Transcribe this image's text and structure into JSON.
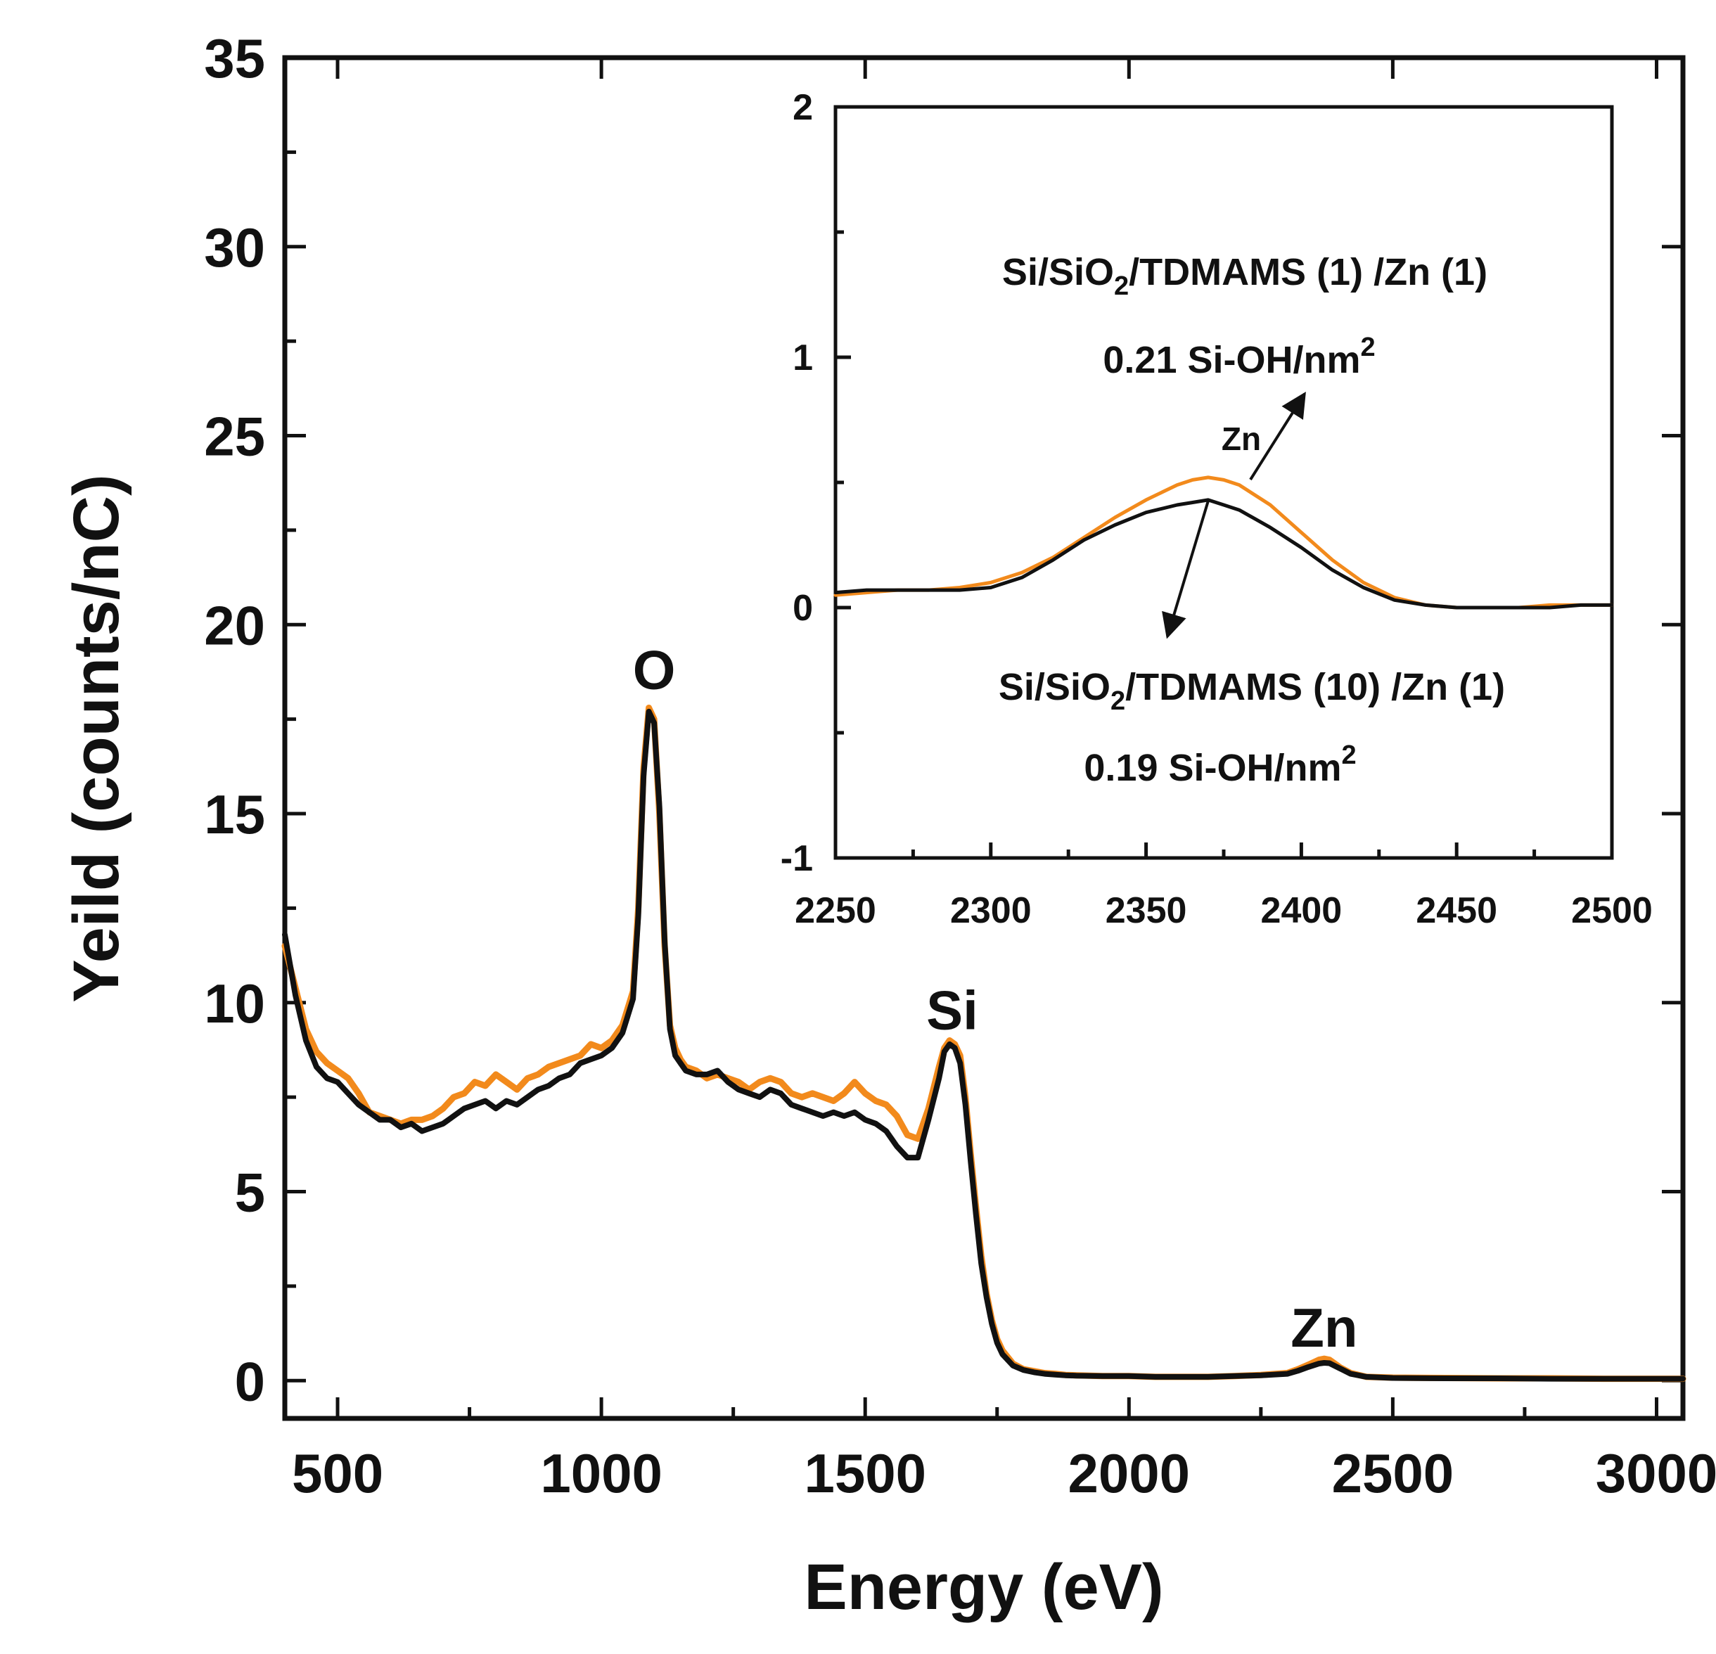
{
  "chart_data": [
    {
      "type": "line",
      "xlabel": "Energy (eV)",
      "ylabel": "Yeild (counts/nC)",
      "xlim": [
        400,
        3050
      ],
      "ylim": [
        -1,
        35
      ],
      "x_ticks": [
        500,
        1000,
        1500,
        2000,
        2500,
        3000
      ],
      "y_ticks": [
        0,
        5,
        10,
        15,
        20,
        25,
        30,
        35
      ],
      "grid": false,
      "peak_labels": [
        {
          "text": "O",
          "x": 1100,
          "y": 18.3
        },
        {
          "text": "Si",
          "x": 1665,
          "y": 9.3
        },
        {
          "text": "Zn",
          "x": 2370,
          "y": 0.9
        }
      ],
      "series": [
        {
          "color": "#F28A1C",
          "x": [
            400,
            420,
            440,
            460,
            480,
            500,
            520,
            540,
            560,
            580,
            600,
            620,
            640,
            660,
            680,
            700,
            720,
            740,
            760,
            780,
            800,
            820,
            840,
            860,
            880,
            900,
            920,
            940,
            960,
            980,
            1000,
            1020,
            1040,
            1060,
            1070,
            1080,
            1090,
            1100,
            1110,
            1120,
            1130,
            1140,
            1150,
            1160,
            1180,
            1200,
            1220,
            1240,
            1260,
            1280,
            1300,
            1320,
            1340,
            1360,
            1380,
            1400,
            1420,
            1440,
            1460,
            1480,
            1500,
            1520,
            1540,
            1560,
            1580,
            1600,
            1620,
            1640,
            1650,
            1660,
            1670,
            1680,
            1690,
            1700,
            1710,
            1720,
            1730,
            1740,
            1750,
            1760,
            1780,
            1800,
            1820,
            1840,
            1860,
            1880,
            1900,
            1950,
            2000,
            2050,
            2100,
            2150,
            2200,
            2250,
            2300,
            2320,
            2340,
            2360,
            2370,
            2380,
            2400,
            2420,
            2450,
            2500,
            2600,
            2700,
            2800,
            2900,
            3000,
            3050
          ],
          "values": [
            11.5,
            10.4,
            9.3,
            8.7,
            8.4,
            8.2,
            8.0,
            7.6,
            7.1,
            7.0,
            6.9,
            6.8,
            6.9,
            6.9,
            7.0,
            7.2,
            7.5,
            7.6,
            7.9,
            7.8,
            8.1,
            7.9,
            7.7,
            8.0,
            8.1,
            8.3,
            8.4,
            8.5,
            8.6,
            8.9,
            8.8,
            9.0,
            9.4,
            10.3,
            12.5,
            16.2,
            17.8,
            17.5,
            15.0,
            11.5,
            9.4,
            8.8,
            8.5,
            8.3,
            8.2,
            8.0,
            8.1,
            8.0,
            7.9,
            7.7,
            7.9,
            8.0,
            7.9,
            7.6,
            7.5,
            7.6,
            7.5,
            7.4,
            7.6,
            7.9,
            7.6,
            7.4,
            7.3,
            7.0,
            6.5,
            6.4,
            7.2,
            8.3,
            8.8,
            9.0,
            8.9,
            8.6,
            7.5,
            6.0,
            4.6,
            3.3,
            2.3,
            1.6,
            1.1,
            0.8,
            0.45,
            0.3,
            0.25,
            0.2,
            0.18,
            0.15,
            0.14,
            0.12,
            0.12,
            0.1,
            0.1,
            0.1,
            0.12,
            0.15,
            0.2,
            0.3,
            0.42,
            0.55,
            0.58,
            0.55,
            0.35,
            0.2,
            0.1,
            0.08,
            0.07,
            0.06,
            0.06,
            0.05,
            0.05,
            0.05
          ]
        },
        {
          "color": "#111111",
          "x": [
            400,
            420,
            440,
            460,
            480,
            500,
            520,
            540,
            560,
            580,
            600,
            620,
            640,
            660,
            680,
            700,
            720,
            740,
            760,
            780,
            800,
            820,
            840,
            860,
            880,
            900,
            920,
            940,
            960,
            980,
            1000,
            1020,
            1040,
            1060,
            1070,
            1080,
            1090,
            1100,
            1110,
            1120,
            1130,
            1140,
            1150,
            1160,
            1180,
            1200,
            1220,
            1240,
            1260,
            1280,
            1300,
            1320,
            1340,
            1360,
            1380,
            1400,
            1420,
            1440,
            1460,
            1480,
            1500,
            1520,
            1540,
            1560,
            1580,
            1600,
            1620,
            1640,
            1650,
            1660,
            1670,
            1680,
            1690,
            1700,
            1710,
            1720,
            1730,
            1740,
            1750,
            1760,
            1780,
            1800,
            1820,
            1840,
            1860,
            1880,
            1900,
            1950,
            2000,
            2050,
            2100,
            2150,
            2200,
            2250,
            2300,
            2320,
            2340,
            2360,
            2370,
            2380,
            2400,
            2420,
            2450,
            2500,
            2600,
            2700,
            2800,
            2900,
            3000,
            3050
          ],
          "values": [
            11.8,
            10.2,
            9.0,
            8.3,
            8.0,
            7.9,
            7.6,
            7.3,
            7.1,
            6.9,
            6.9,
            6.7,
            6.8,
            6.6,
            6.7,
            6.8,
            7.0,
            7.2,
            7.3,
            7.4,
            7.2,
            7.4,
            7.3,
            7.5,
            7.7,
            7.8,
            8.0,
            8.1,
            8.4,
            8.5,
            8.6,
            8.8,
            9.2,
            10.1,
            12.3,
            16.0,
            17.7,
            17.4,
            15.2,
            11.6,
            9.3,
            8.6,
            8.4,
            8.2,
            8.1,
            8.1,
            8.2,
            7.9,
            7.7,
            7.6,
            7.5,
            7.7,
            7.6,
            7.3,
            7.2,
            7.1,
            7.0,
            7.1,
            7.0,
            7.1,
            6.9,
            6.8,
            6.6,
            6.2,
            5.9,
            5.9,
            6.9,
            8.0,
            8.7,
            8.9,
            8.8,
            8.4,
            7.3,
            5.8,
            4.4,
            3.1,
            2.2,
            1.5,
            1.0,
            0.7,
            0.4,
            0.28,
            0.22,
            0.18,
            0.16,
            0.14,
            0.13,
            0.12,
            0.12,
            0.1,
            0.1,
            0.1,
            0.12,
            0.14,
            0.18,
            0.26,
            0.36,
            0.45,
            0.47,
            0.46,
            0.32,
            0.18,
            0.1,
            0.07,
            0.06,
            0.06,
            0.05,
            0.05,
            0.05,
            0.05
          ]
        }
      ]
    },
    {
      "type": "line",
      "xlim": [
        2250,
        2500
      ],
      "ylim": [
        -1,
        2
      ],
      "x_ticks": [
        2250,
        2300,
        2350,
        2400,
        2450,
        2500
      ],
      "y_ticks": [
        -1,
        0,
        1,
        2
      ],
      "grid": false,
      "peak_label": "Zn",
      "annotations": {
        "upper": {
          "text_main": "Si/SiO",
          "text_sub": "2",
          "text_rest": "/TDMAMS (1) /Zn (1)",
          "density": "0.21 Si-OH/nm",
          "density_sup": "2"
        },
        "lower": {
          "text_main": "Si/SiO",
          "text_sub": "2",
          "text_rest": "/TDMAMS (10) /Zn (1)",
          "density": "0.19 Si-OH/nm",
          "density_sup": "2"
        }
      },
      "series": [
        {
          "color": "#F28A1C",
          "x": [
            2250,
            2260,
            2270,
            2280,
            2290,
            2300,
            2310,
            2320,
            2330,
            2340,
            2350,
            2360,
            2365,
            2370,
            2375,
            2380,
            2390,
            2400,
            2410,
            2420,
            2430,
            2440,
            2450,
            2460,
            2470,
            2480,
            2490,
            2500
          ],
          "values": [
            0.05,
            0.06,
            0.07,
            0.07,
            0.08,
            0.1,
            0.14,
            0.2,
            0.28,
            0.36,
            0.43,
            0.49,
            0.51,
            0.52,
            0.51,
            0.49,
            0.41,
            0.3,
            0.19,
            0.1,
            0.04,
            0.01,
            0.0,
            0.0,
            0.0,
            0.01,
            0.01,
            0.01
          ]
        },
        {
          "color": "#111111",
          "x": [
            2250,
            2260,
            2270,
            2280,
            2290,
            2300,
            2310,
            2320,
            2330,
            2340,
            2350,
            2360,
            2365,
            2370,
            2375,
            2380,
            2390,
            2400,
            2410,
            2420,
            2430,
            2440,
            2450,
            2460,
            2470,
            2480,
            2490,
            2500
          ],
          "values": [
            0.06,
            0.07,
            0.07,
            0.07,
            0.07,
            0.08,
            0.12,
            0.19,
            0.27,
            0.33,
            0.38,
            0.41,
            0.42,
            0.43,
            0.41,
            0.39,
            0.32,
            0.24,
            0.15,
            0.08,
            0.03,
            0.01,
            0.0,
            0.0,
            0.0,
            0.0,
            0.01,
            0.01
          ]
        }
      ]
    }
  ]
}
